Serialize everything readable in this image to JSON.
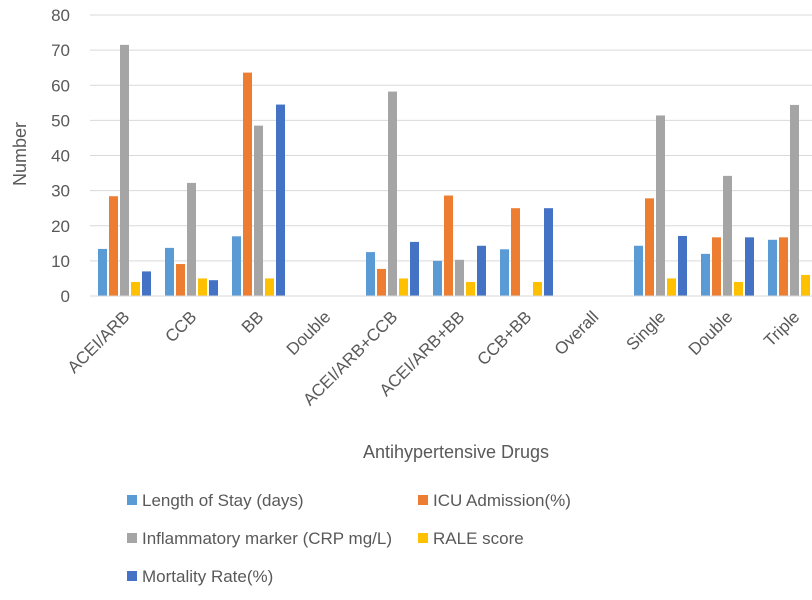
{
  "chart_data": {
    "type": "bar",
    "title": "",
    "xlabel": "Antihypertensive Drugs",
    "ylabel": "Number",
    "ylim": [
      0,
      80
    ],
    "yticks": [
      0,
      10,
      20,
      30,
      40,
      50,
      60,
      70,
      80
    ],
    "grid": true,
    "legend_position": "bottom",
    "categories": [
      "ACEI/ARB",
      "CCB",
      "BB",
      "Double",
      "ACEI/ARB+CCB",
      "ACEI/ARB+BB",
      "CCB+BB",
      "Overall",
      "Single",
      "Double",
      "Triple"
    ],
    "series": [
      {
        "name": "Length of Stay (days)",
        "color": "#5B9BD5",
        "values": [
          13.4,
          13.7,
          17,
          null,
          12.5,
          10,
          13.3,
          null,
          14.3,
          12,
          16
        ]
      },
      {
        "name": "ICU Admission(%)",
        "color": "#ED7D31",
        "values": [
          28.4,
          9.1,
          63.6,
          null,
          7.7,
          28.6,
          25,
          null,
          27.8,
          16.7,
          16.7
        ]
      },
      {
        "name": "Inflammatory marker (CRP mg/L)",
        "color": "#A5A5A5",
        "values": [
          71.5,
          32.2,
          48.5,
          null,
          58.2,
          10.3,
          null,
          null,
          51.4,
          34.2,
          54.4
        ]
      },
      {
        "name": "RALE score",
        "color": "#FFC000",
        "values": [
          4,
          5,
          5,
          null,
          5,
          4,
          4,
          null,
          5,
          4,
          6
        ]
      },
      {
        "name": "Mortality Rate(%)",
        "color": "#4472C4",
        "values": [
          7,
          4.5,
          54.5,
          null,
          15.4,
          14.3,
          25,
          null,
          17.1,
          16.7,
          null
        ]
      }
    ]
  }
}
